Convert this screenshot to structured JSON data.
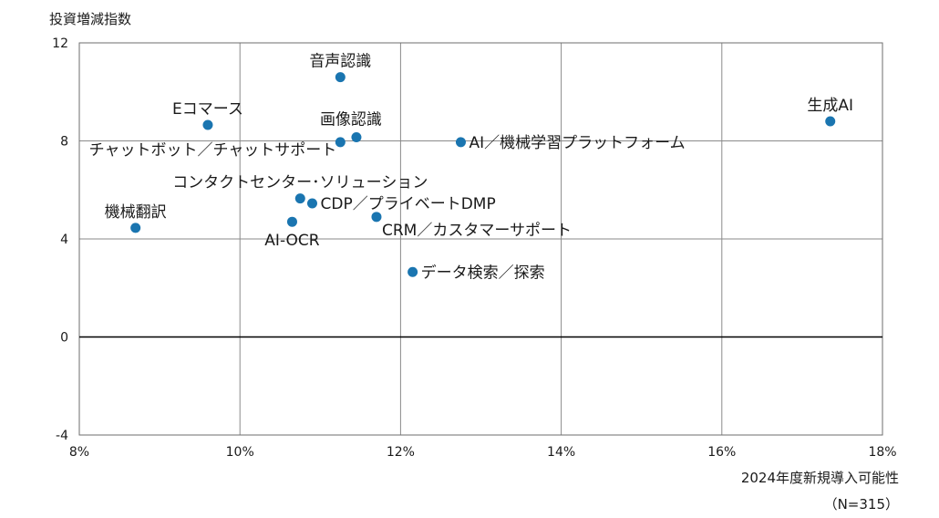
{
  "chart_data": {
    "type": "scatter",
    "title": "",
    "ylabel": "投資増減指数",
    "xlabel": "2024年度新規導入可能性",
    "note": "（N=315）",
    "xlim": [
      8,
      18
    ],
    "ylim": [
      -4,
      12
    ],
    "x_ticks": [
      8,
      10,
      12,
      14,
      16,
      18
    ],
    "x_tick_labels": [
      "8%",
      "10%",
      "12%",
      "14%",
      "16%",
      "18%"
    ],
    "y_ticks": [
      -4,
      0,
      4,
      8,
      12
    ],
    "y_tick_labels": [
      "-4",
      "0",
      "4",
      "8",
      "12"
    ],
    "grid": true,
    "marker_color": "#1a75b0",
    "points": [
      {
        "label": "生成AI",
        "x": 17.35,
        "y": 8.8,
        "label_pos": "above"
      },
      {
        "label": "音声認識",
        "x": 11.25,
        "y": 10.6,
        "label_pos": "above"
      },
      {
        "label": "Eコマース",
        "x": 9.6,
        "y": 8.65,
        "label_pos": "above"
      },
      {
        "label": "画像認識",
        "x": 11.45,
        "y": 8.15,
        "label_pos": "above-right"
      },
      {
        "label": "チャットボット／チャットサポート",
        "x": 11.25,
        "y": 7.95,
        "label_pos": "left"
      },
      {
        "label": "AI／機械学習プラットフォーム",
        "x": 12.75,
        "y": 7.95,
        "label_pos": "right"
      },
      {
        "label": "コンタクトセンター･ソリューション",
        "x": 10.75,
        "y": 5.65,
        "label_pos": "above"
      },
      {
        "label": "CDP／プライベートDMP",
        "x": 10.9,
        "y": 5.45,
        "label_pos": "right"
      },
      {
        "label": "機械翻訳",
        "x": 8.7,
        "y": 4.45,
        "label_pos": "above"
      },
      {
        "label": "AI-OCR",
        "x": 10.65,
        "y": 4.7,
        "label_pos": "below"
      },
      {
        "label": "CRM／カスタマーサポート",
        "x": 11.7,
        "y": 4.9,
        "label_pos": "below-right"
      },
      {
        "label": "データ検索／探索",
        "x": 12.15,
        "y": 2.65,
        "label_pos": "right"
      }
    ]
  }
}
